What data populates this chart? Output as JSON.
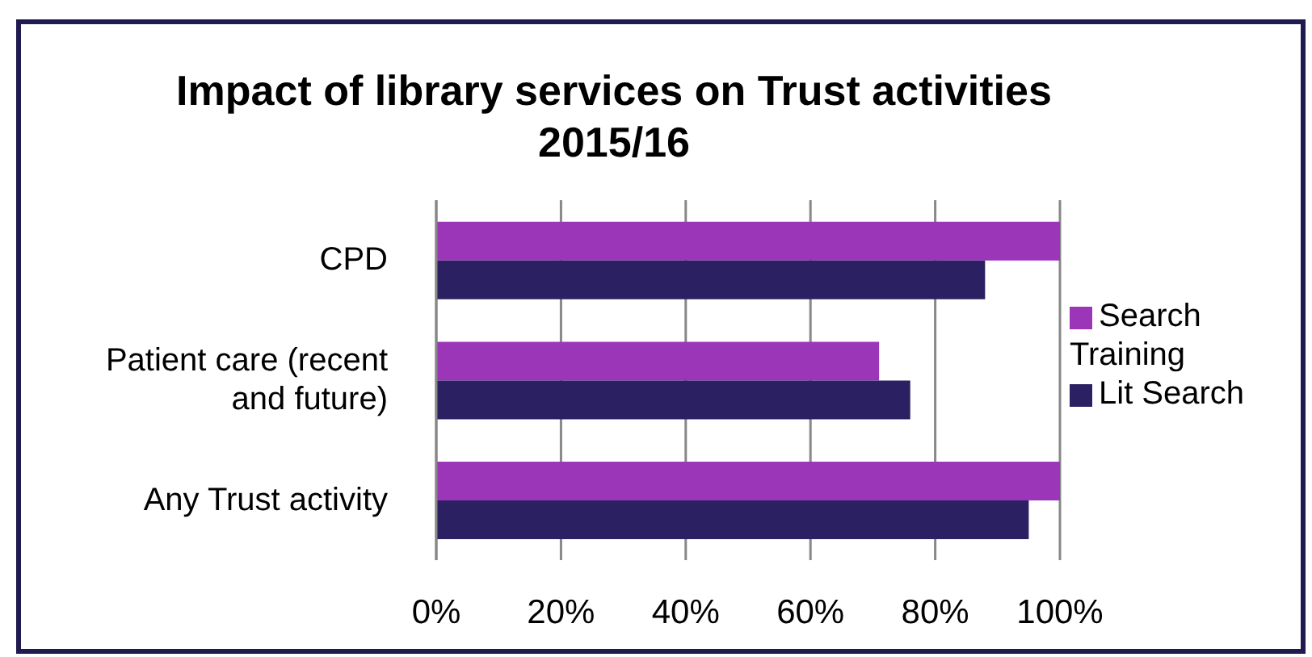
{
  "chart_data": {
    "type": "bar",
    "orientation": "horizontal",
    "title": "Impact of library services on Trust activities 2015/16",
    "categories": [
      "CPD",
      "Patient care (recent and future)",
      "Any Trust activity"
    ],
    "series": [
      {
        "name": "Search Training",
        "color": "#9b36b9",
        "values": [
          100,
          71,
          100
        ]
      },
      {
        "name": "Lit Search",
        "color": "#2b2162",
        "values": [
          88,
          76,
          95
        ]
      }
    ],
    "xlim": [
      0,
      100
    ],
    "xticks": [
      {
        "value": 0,
        "label": "0%"
      },
      {
        "value": 20,
        "label": "20%"
      },
      {
        "value": 40,
        "label": "40%"
      },
      {
        "value": 60,
        "label": "60%"
      },
      {
        "value": 80,
        "label": "80%"
      },
      {
        "value": 100,
        "label": "100%"
      }
    ],
    "grid": "x",
    "legend": "right"
  }
}
